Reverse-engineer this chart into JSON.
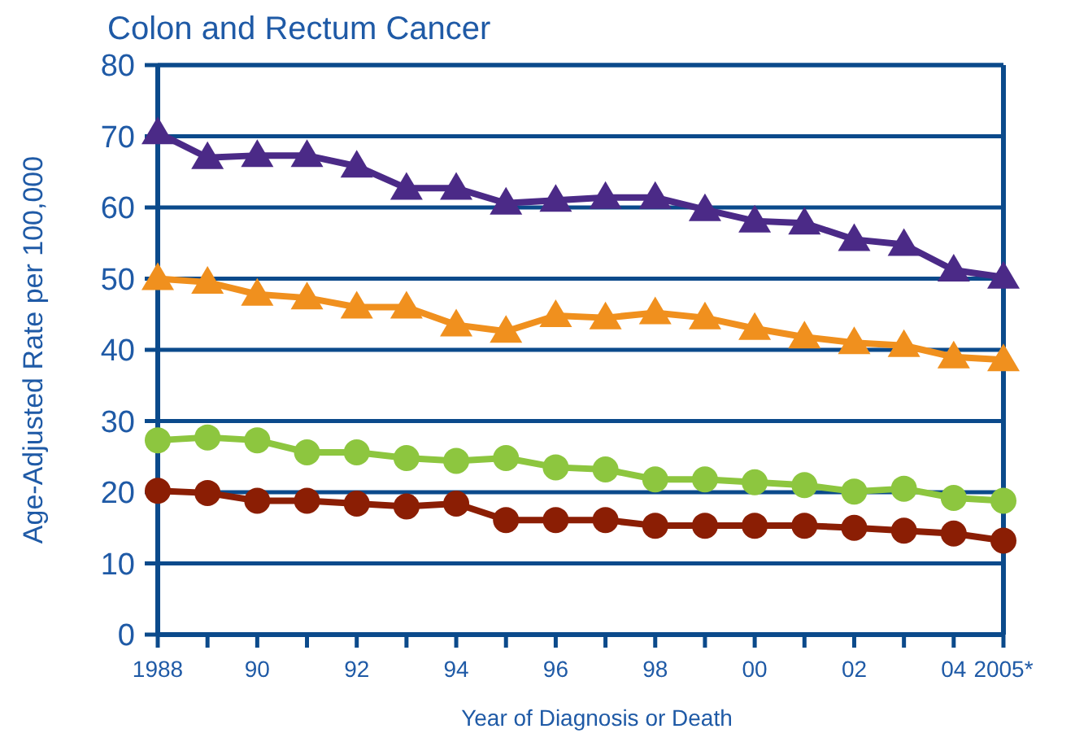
{
  "chart_data": {
    "type": "line",
    "title": "Colon and Rectum Cancer",
    "xlabel": "Year of Diagnosis or Death",
    "ylabel": "Age-Adjusted Rate per 100,000",
    "x": [
      1988,
      1989,
      1990,
      1991,
      1992,
      1993,
      1994,
      1995,
      1996,
      1997,
      1998,
      1999,
      2000,
      2001,
      2002,
      2003,
      2004,
      2005
    ],
    "xlim": [
      1988,
      2005
    ],
    "xticks": [
      1988,
      {
        "value": 1989,
        "label": null
      },
      {
        "value": 1990,
        "label": "90"
      },
      {
        "value": 1991,
        "label": null
      },
      {
        "value": 1992,
        "label": "92"
      },
      {
        "value": 1993,
        "label": null
      },
      {
        "value": 1994,
        "label": "94"
      },
      {
        "value": 1995,
        "label": null
      },
      {
        "value": 1996,
        "label": "96"
      },
      {
        "value": 1997,
        "label": null
      },
      {
        "value": 1998,
        "label": "98"
      },
      {
        "value": 1999,
        "label": null
      },
      {
        "value": 2000,
        "label": "00"
      },
      {
        "value": 2001,
        "label": null
      },
      {
        "value": 2002,
        "label": "02"
      },
      {
        "value": 2003,
        "label": null
      },
      {
        "value": 2004,
        "label": "04"
      },
      {
        "value": 2005,
        "label": "2005*"
      }
    ],
    "ylim": [
      0,
      80
    ],
    "yticks": [
      0,
      10,
      20,
      30,
      40,
      50,
      60,
      70,
      80
    ],
    "grid": "y",
    "series": [
      {
        "color": "#4b2a87",
        "marker": "triangle",
        "values": [
          70.5,
          67,
          67.3,
          67.3,
          65.8,
          62.7,
          62.7,
          60.6,
          61,
          61.4,
          61.4,
          59.7,
          58.1,
          57.8,
          55.5,
          54.8,
          51.2,
          50.2
        ]
      },
      {
        "color": "#f0901e",
        "marker": "triangle",
        "values": [
          50,
          49.5,
          47.8,
          47.3,
          46,
          46,
          43.5,
          42.6,
          44.8,
          44.5,
          45.2,
          44.5,
          43,
          41.8,
          41,
          40.6,
          39,
          38.6
        ]
      },
      {
        "color": "#8dc63f",
        "marker": "circle",
        "values": [
          27.3,
          27.7,
          27.3,
          25.6,
          25.6,
          24.8,
          24.4,
          24.8,
          23.5,
          23.2,
          21.8,
          21.8,
          21.4,
          21,
          20.1,
          20.5,
          19.2,
          18.8
        ]
      },
      {
        "color": "#8b1e04",
        "marker": "circle",
        "values": [
          20.2,
          19.9,
          18.8,
          18.8,
          18.4,
          18,
          18.4,
          16.1,
          16.1,
          16.1,
          15.3,
          15.3,
          15.3,
          15.3,
          15,
          14.6,
          14.2,
          13.2
        ]
      }
    ]
  }
}
